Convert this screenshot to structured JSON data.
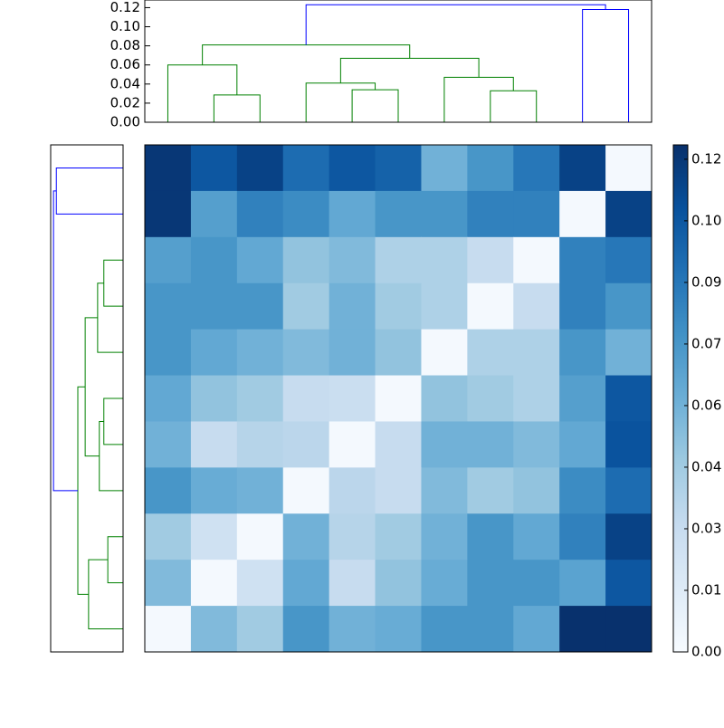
{
  "chart_data": [
    {
      "type": "dendrogram",
      "orientation": "top",
      "ylim": [
        0,
        0.128
      ],
      "yticks": [
        {
          "value": 0,
          "label": "0.00"
        },
        {
          "value": 0.02,
          "label": "0.02"
        },
        {
          "value": 0.04,
          "label": "0.04"
        },
        {
          "value": 0.06,
          "label": "0.06"
        },
        {
          "value": 0.08,
          "label": "0.08"
        },
        {
          "value": 0.1,
          "label": "0.10"
        },
        {
          "value": 0.12,
          "label": "0.12"
        }
      ],
      "links": [
        {
          "leaf_pos": [
            1,
            1,
            2,
            2
          ],
          "height": [
            0,
            0.0286,
            0.0286,
            0
          ],
          "color": "#008000"
        },
        {
          "leaf_pos": [
            0,
            0,
            1.5,
            1.5
          ],
          "height": [
            0,
            0.06,
            0.06,
            0.0286
          ],
          "color": "#008000"
        },
        {
          "leaf_pos": [
            4,
            4,
            5,
            5
          ],
          "height": [
            0,
            0.034,
            0.034,
            0
          ],
          "color": "#008000"
        },
        {
          "leaf_pos": [
            3,
            3,
            4.5,
            4.5
          ],
          "height": [
            0,
            0.041,
            0.041,
            0.034
          ],
          "color": "#008000"
        },
        {
          "leaf_pos": [
            7,
            7,
            8,
            8
          ],
          "height": [
            0,
            0.033,
            0.033,
            0
          ],
          "color": "#008000"
        },
        {
          "leaf_pos": [
            6,
            6,
            7.5,
            7.5
          ],
          "height": [
            0,
            0.047,
            0.047,
            0.033
          ],
          "color": "#008000"
        },
        {
          "leaf_pos": [
            3.75,
            3.75,
            6.75,
            6.75
          ],
          "height": [
            0.041,
            0.067,
            0.067,
            0.047
          ],
          "color": "#008000"
        },
        {
          "leaf_pos": [
            0.75,
            0.75,
            5.25,
            5.25
          ],
          "height": [
            0.06,
            0.081,
            0.081,
            0.067
          ],
          "color": "#008000"
        },
        {
          "leaf_pos": [
            9,
            9,
            10,
            10
          ],
          "height": [
            0,
            0.118,
            0.118,
            0
          ],
          "color": "#0000ff"
        },
        {
          "leaf_pos": [
            3,
            3,
            9.5,
            9.5
          ],
          "height": [
            0.081,
            0.123,
            0.123,
            0.118
          ],
          "color": "#0000ff"
        }
      ]
    },
    {
      "type": "dendrogram",
      "orientation": "left",
      "xlim": [
        0,
        0.128
      ],
      "links": [
        {
          "leaf_pos": [
            0,
            0,
            1,
            1
          ],
          "height": [
            0,
            0.118,
            0.118,
            0
          ],
          "color": "#0000ff"
        },
        {
          "leaf_pos": [
            2,
            2,
            3,
            3
          ],
          "height": [
            0,
            0.034,
            0.034,
            0
          ],
          "color": "#008000"
        },
        {
          "leaf_pos": [
            4,
            4,
            2.5,
            2.5
          ],
          "height": [
            0,
            0.045,
            0.045,
            0.034
          ],
          "color": "#008000"
        },
        {
          "leaf_pos": [
            5,
            5,
            6,
            6
          ],
          "height": [
            0,
            0.034,
            0.034,
            0
          ],
          "color": "#008000"
        },
        {
          "leaf_pos": [
            7,
            7,
            5.5,
            5.5
          ],
          "height": [
            0,
            0.042,
            0.042,
            0.034
          ],
          "color": "#008000"
        },
        {
          "leaf_pos": [
            3.25,
            3.25,
            6.25,
            6.25
          ],
          "height": [
            0.045,
            0.067,
            0.067,
            0.042
          ],
          "color": "#008000"
        },
        {
          "leaf_pos": [
            8,
            8,
            9,
            9
          ],
          "height": [
            0,
            0.027,
            0.027,
            0
          ],
          "color": "#008000"
        },
        {
          "leaf_pos": [
            10,
            10,
            8.5,
            8.5
          ],
          "height": [
            0,
            0.061,
            0.061,
            0.027
          ],
          "color": "#008000"
        },
        {
          "leaf_pos": [
            4.75,
            4.75,
            9.25,
            9.25
          ],
          "height": [
            0.067,
            0.08,
            0.08,
            0.061
          ],
          "color": "#008000"
        },
        {
          "leaf_pos": [
            0.5,
            0.5,
            7,
            7
          ],
          "height": [
            0.118,
            0.123,
            0.123,
            0.08
          ],
          "color": "#0000ff"
        }
      ]
    },
    {
      "type": "heatmap",
      "colormap": "Blues",
      "clim": [
        0,
        0.1235
      ],
      "colorbar_ticks": [
        {
          "value": 0,
          "label": "0.00"
        },
        {
          "value": 0.015,
          "label": "0.01"
        },
        {
          "value": 0.03,
          "label": "0.03"
        },
        {
          "value": 0.045,
          "label": "0.04"
        },
        {
          "value": 0.06,
          "label": "0.06"
        },
        {
          "value": 0.075,
          "label": "0.07"
        },
        {
          "value": 0.09,
          "label": "0.09"
        },
        {
          "value": 0.105,
          "label": "0.10"
        },
        {
          "value": 0.12,
          "label": "0.12"
        }
      ],
      "values": [
        [
          0.12,
          0.105,
          0.115,
          0.095,
          0.105,
          0.1,
          0.06,
          0.075,
          0.09,
          0.115,
          0.002
        ],
        [
          0.12,
          0.07,
          0.085,
          0.08,
          0.065,
          0.075,
          0.075,
          0.085,
          0.085,
          0.002,
          0.115
        ],
        [
          0.07,
          0.075,
          0.065,
          0.05,
          0.055,
          0.04,
          0.04,
          0.03,
          0.002,
          0.085,
          0.09
        ],
        [
          0.075,
          0.075,
          0.075,
          0.045,
          0.06,
          0.045,
          0.04,
          0.002,
          0.03,
          0.085,
          0.075
        ],
        [
          0.075,
          0.065,
          0.06,
          0.055,
          0.06,
          0.05,
          0.002,
          0.04,
          0.04,
          0.075,
          0.06
        ],
        [
          0.065,
          0.05,
          0.045,
          0.03,
          0.028,
          0.002,
          0.05,
          0.045,
          0.04,
          0.07,
          0.105
        ],
        [
          0.06,
          0.03,
          0.037,
          0.035,
          0.002,
          0.03,
          0.06,
          0.06,
          0.055,
          0.065,
          0.107
        ],
        [
          0.075,
          0.063,
          0.06,
          0.002,
          0.035,
          0.03,
          0.055,
          0.045,
          0.05,
          0.08,
          0.095
        ],
        [
          0.045,
          0.025,
          0.002,
          0.06,
          0.037,
          0.045,
          0.06,
          0.075,
          0.065,
          0.085,
          0.115
        ],
        [
          0.055,
          0.002,
          0.025,
          0.065,
          0.03,
          0.05,
          0.063,
          0.075,
          0.075,
          0.068,
          0.105
        ],
        [
          0.002,
          0.055,
          0.045,
          0.075,
          0.06,
          0.063,
          0.075,
          0.075,
          0.065,
          0.123,
          0.123
        ]
      ]
    }
  ]
}
